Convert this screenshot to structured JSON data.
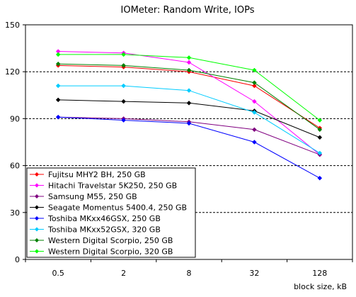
{
  "chart_data": {
    "type": "line",
    "title": "IOMeter: Random Write, IOPs",
    "xlabel": "block size, kB",
    "ylabel": "",
    "categories": [
      "0.5",
      "2",
      "8",
      "32",
      "128"
    ],
    "ylim": [
      0,
      150
    ],
    "yticks": [
      "0",
      "30",
      "60",
      "90",
      "120",
      "150"
    ],
    "grid": "horizontal dashed",
    "legend_position": "bottom-left",
    "series": [
      {
        "name": "Fujitsu MHY2 BH, 250 GB",
        "color": "#ff0000",
        "values": [
          124,
          123,
          120,
          111,
          84
        ]
      },
      {
        "name": "Hitachi Travelstar 5K250, 250 GB",
        "color": "#ff00ff",
        "values": [
          133,
          132,
          126,
          101,
          67
        ]
      },
      {
        "name": "Samsung M55, 250 GB",
        "color": "#800080",
        "values": [
          91,
          90,
          88,
          83,
          67
        ]
      },
      {
        "name": "Seagate Momentus 5400.4, 250 GB",
        "color": "#000000",
        "values": [
          102,
          101,
          100,
          95,
          78
        ]
      },
      {
        "name": "Toshiba MKxx46GSX, 250 GB",
        "color": "#0000ff",
        "values": [
          91,
          89,
          87,
          75,
          52
        ]
      },
      {
        "name": "Toshiba MKxx52GSX, 320 GB",
        "color": "#00ccff",
        "values": [
          111,
          111,
          108,
          94,
          68
        ]
      },
      {
        "name": "Western Digital Scorpio, 250 GB",
        "color": "#008000",
        "values": [
          125,
          124,
          121,
          113,
          83
        ]
      },
      {
        "name": "Western Digital Scorpio, 320 GB",
        "color": "#00ff00",
        "values": [
          131,
          131,
          129,
          121,
          89
        ]
      }
    ]
  }
}
